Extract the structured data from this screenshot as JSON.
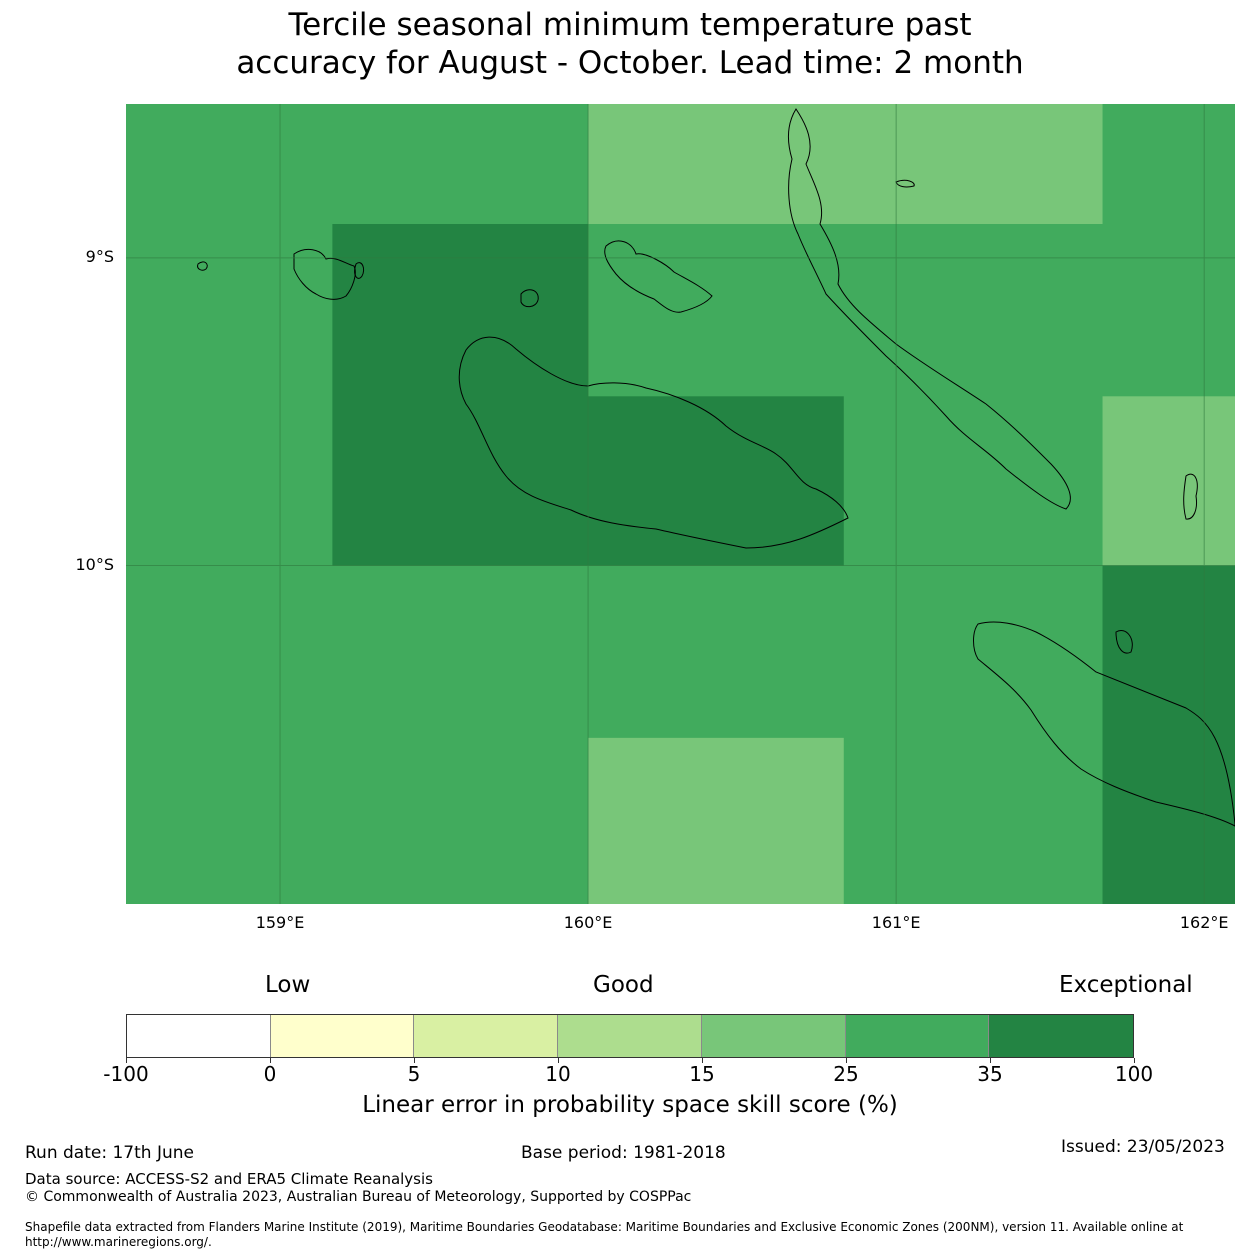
{
  "title_line1": "Tercile seasonal minimum temperature past",
  "title_line2": "accuracy for August - October. Lead time: 2 month",
  "map": {
    "lat_labels": [
      {
        "text": "9°S",
        "lat": -9
      },
      {
        "text": "10°S",
        "lat": -10
      }
    ],
    "lon_labels": [
      {
        "text": "159°E",
        "lon": 159
      },
      {
        "text": "160°E",
        "lon": 160
      },
      {
        "text": "161°E",
        "lon": 161
      },
      {
        "text": "162°E",
        "lon": 162
      }
    ],
    "extent": {
      "lon_min": 158.5,
      "lon_max": 162.1,
      "lat_max": -8.5,
      "lat_min": -11.1
    },
    "cells": [
      {
        "lon0": 158.5,
        "lon1": 162.1,
        "lat0": -8.5,
        "lat1": -11.1,
        "category": 25
      },
      {
        "lon0": 160.0,
        "lon1": 161.67,
        "lat0": -8.5,
        "lat1": -8.89,
        "category": 15
      },
      {
        "lon0": 159.17,
        "lon1": 160.0,
        "lat0": -8.89,
        "lat1": -10.0,
        "category": 35
      },
      {
        "lon0": 160.0,
        "lon1": 160.83,
        "lat0": -9.45,
        "lat1": -10.0,
        "category": 35
      },
      {
        "lon0": 161.67,
        "lon1": 162.1,
        "lat0": -9.45,
        "lat1": -10.0,
        "category": 15
      },
      {
        "lon0": 161.67,
        "lon1": 162.1,
        "lat0": -10.0,
        "lat1": -11.1,
        "category": 35
      },
      {
        "lon0": 160.0,
        "lon1": 160.83,
        "lat0": -10.56,
        "lat1": -11.1,
        "category": 15
      }
    ]
  },
  "categories": {
    "low": "Low",
    "good": "Good",
    "exceptional": "Exceptional"
  },
  "colorbar": {
    "ticks": [
      "-100",
      "0",
      "5",
      "10",
      "15",
      "25",
      "35",
      "100"
    ],
    "colors": [
      "#ffffff",
      "#ffffcc",
      "#d9f0a3",
      "#addd8e",
      "#78c679",
      "#41ab5d",
      "#238443"
    ],
    "label": "Linear error in probability space skill score (%)"
  },
  "footer": {
    "run_date": "Run date: 17th June",
    "base_period": "Base period: 1981-2018",
    "issued": "Issued: 23/05/2023",
    "data_source": "Data source: ACCESS-S2 and ERA5 Climate Reanalysis",
    "copyright": "© Commonwealth of Australia 2023, Australian Bureau of Meteorology, Supported by COSPPac",
    "shapefile": "Shapefile data extracted from Flanders Marine Institute (2019), Maritime Boundaries Geodatabase: Maritime Boundaries and Exclusive Economic Zones (200NM), version 11. Available online at http://www.marineregions.org/."
  }
}
